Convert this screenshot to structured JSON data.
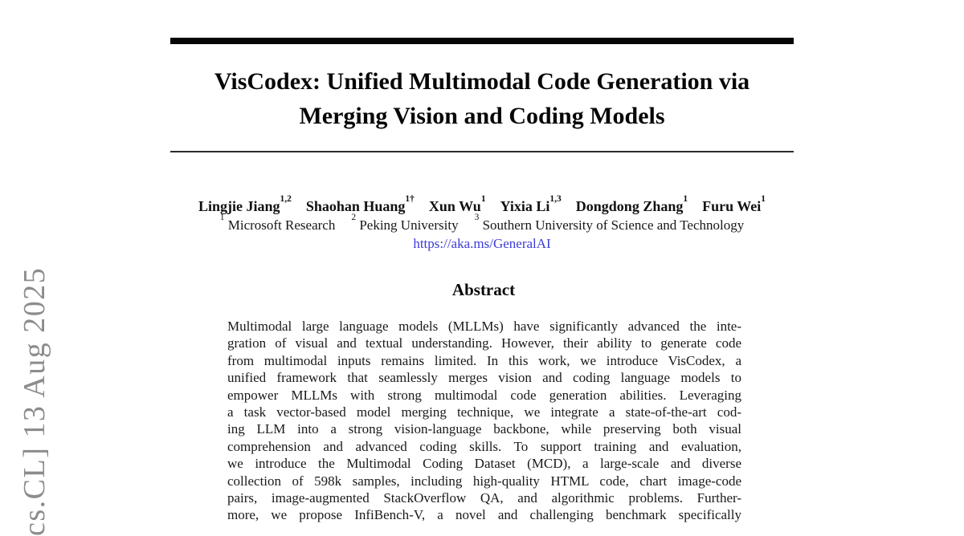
{
  "watermark": {
    "text": "cs.CL] 13 Aug 2025",
    "color": "#8c8c8c"
  },
  "title": {
    "line1": "VisCodex: Unified Multimodal Code Generation via",
    "line2": "Merging Vision and Coding Models"
  },
  "authors": {
    "list": [
      {
        "name": "Lingjie Jiang",
        "sup": "1,2"
      },
      {
        "name": "Shaohan Huang",
        "sup": "1†"
      },
      {
        "name": "Xun Wu",
        "sup": "1"
      },
      {
        "name": "Yixia Li",
        "sup": "1,3"
      },
      {
        "name": "Dongdong Zhang",
        "sup": "1"
      },
      {
        "name": "Furu Wei",
        "sup": "1"
      }
    ]
  },
  "affiliations": {
    "list": [
      {
        "sup": "1",
        "name": "Microsoft Research"
      },
      {
        "sup": "2",
        "name": "Peking University"
      },
      {
        "sup": "3",
        "name": "Southern University of Science and Technology"
      }
    ],
    "link": "https://aka.ms/GeneralAI",
    "link_color": "#3c3cd7"
  },
  "abstract": {
    "heading": "Abstract",
    "lines": [
      "Multimodal large language models (MLLMs) have significantly advanced the inte-",
      "gration of visual and textual understanding. However, their ability to generate code",
      "from multimodal inputs remains limited. In this work, we introduce VisCodex, a",
      "unified framework that seamlessly merges vision and coding language models to",
      "empower MLLMs with strong multimodal code generation abilities. Leveraging",
      "a task vector-based model merging technique, we integrate a state-of-the-art cod-",
      "ing LLM into a strong vision-language backbone, while preserving both visual",
      "comprehension and advanced coding skills. To support training and evaluation,",
      "we introduce the Multimodal Coding Dataset (MCD), a large-scale and diverse",
      "collection of 598k samples, including high-quality HTML code, chart image-code",
      "pairs, image-augmented StackOverflow QA, and algorithmic problems. Further-",
      "more, we propose InfiBench-V, a novel and challenging benchmark specifically"
    ]
  }
}
